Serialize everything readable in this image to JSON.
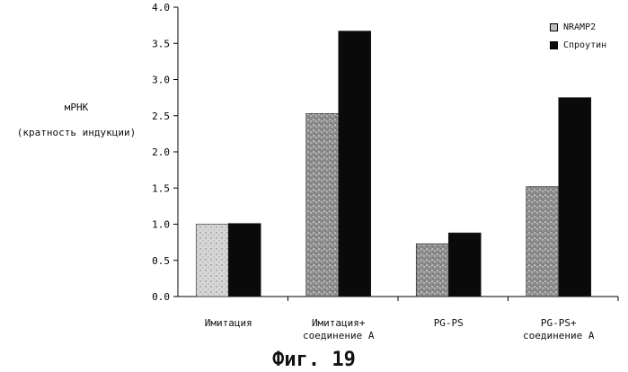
{
  "chart_data": {
    "type": "bar",
    "title": "",
    "ylabel_line1": "мРНК",
    "ylabel_line2": "(кратность индукции)",
    "xlabel": "",
    "ylim": [
      0,
      4.0
    ],
    "yticks": [
      "0.0",
      "0.5",
      "1.0",
      "1.5",
      "2.0",
      "2.5",
      "3.0",
      "3.5",
      "4.0"
    ],
    "categories": [
      {
        "line1": "Имитация",
        "line2": ""
      },
      {
        "line1": "Имитация+",
        "line2": "соединение А"
      },
      {
        "line1": "PG-PS",
        "line2": ""
      },
      {
        "line1": "PG-PS+",
        "line2": "соединение А"
      }
    ],
    "series": [
      {
        "name": "NRAMP2",
        "values": [
          1.0,
          2.53,
          0.73,
          1.52
        ],
        "color": "#9a9a9a"
      },
      {
        "name": "Спроутин",
        "values": [
          1.01,
          3.67,
          0.88,
          2.75
        ],
        "color": "#0a0a0a"
      }
    ],
    "legend_position": "top-right",
    "caption": "Фиг. 19"
  }
}
